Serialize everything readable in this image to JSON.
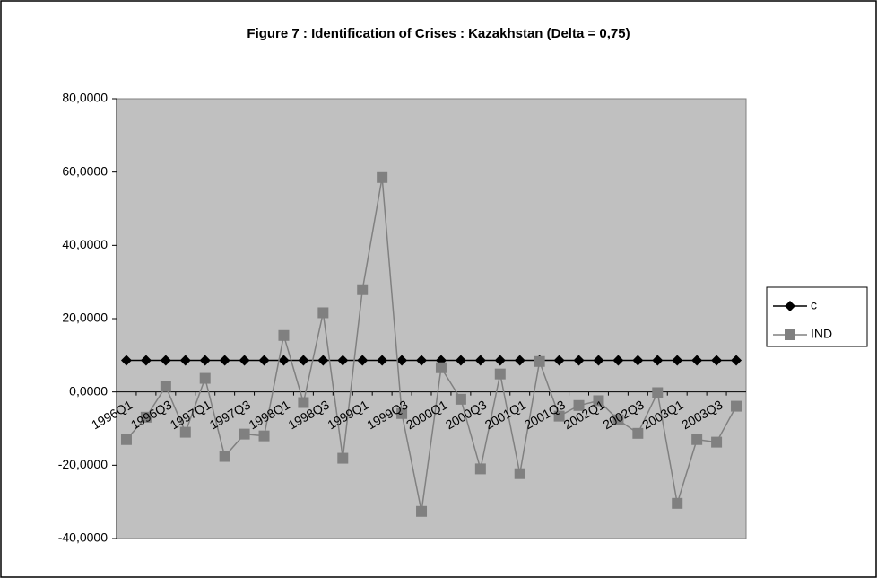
{
  "chart_data": {
    "type": "line",
    "title": "Figure 7 : Identification of Crises : Kazakhstan (Delta = 0,75)",
    "categories": [
      "1996Q1",
      null,
      "1996Q3",
      null,
      "1997Q1",
      null,
      "1997Q3",
      null,
      "1998Q1",
      null,
      "1998Q3",
      null,
      "1999Q1",
      null,
      "1999Q3",
      null,
      "2000Q1",
      null,
      "2000Q3",
      null,
      "2001Q1",
      null,
      "2001Q3",
      null,
      "2002Q1",
      null,
      "2002Q3",
      null,
      "2003Q1",
      null,
      "2003Q3",
      null
    ],
    "series": [
      {
        "name": "c",
        "color": "#000000",
        "marker": "diamond",
        "values": [
          8.6,
          8.6,
          8.6,
          8.6,
          8.6,
          8.6,
          8.6,
          8.6,
          8.6,
          8.6,
          8.6,
          8.6,
          8.6,
          8.6,
          8.6,
          8.6,
          8.6,
          8.6,
          8.6,
          8.6,
          8.6,
          8.6,
          8.6,
          8.6,
          8.6,
          8.6,
          8.6,
          8.6,
          8.6,
          8.6,
          8.6,
          8.6
        ]
      },
      {
        "name": "IND",
        "color": "#808080",
        "marker": "square",
        "values": [
          -13,
          -6.9,
          1.5,
          -11,
          3.7,
          -17.6,
          -11.5,
          -12,
          15.4,
          -2.9,
          21.6,
          -18.1,
          27.9,
          58.5,
          -5.9,
          -32.6,
          6.6,
          -2,
          -21,
          4.9,
          -22.3,
          8.3,
          -6.6,
          -3.7,
          -2.4,
          -7.6,
          -11.3,
          -0.2,
          -30.4,
          -13,
          -13.7,
          -3.9
        ]
      }
    ],
    "ylim": [
      -40,
      80
    ],
    "yticks": [
      {
        "value": -40,
        "label": "-40,0000"
      },
      {
        "value": -20,
        "label": "-20,0000"
      },
      {
        "value": 0,
        "label": "0,0000"
      },
      {
        "value": 20,
        "label": "20,0000"
      },
      {
        "value": 40,
        "label": "40,0000"
      },
      {
        "value": 60,
        "label": "60,0000"
      },
      {
        "value": 80,
        "label": "80,0000"
      }
    ],
    "plot_background": "#c0c0c0",
    "legend": "right"
  }
}
